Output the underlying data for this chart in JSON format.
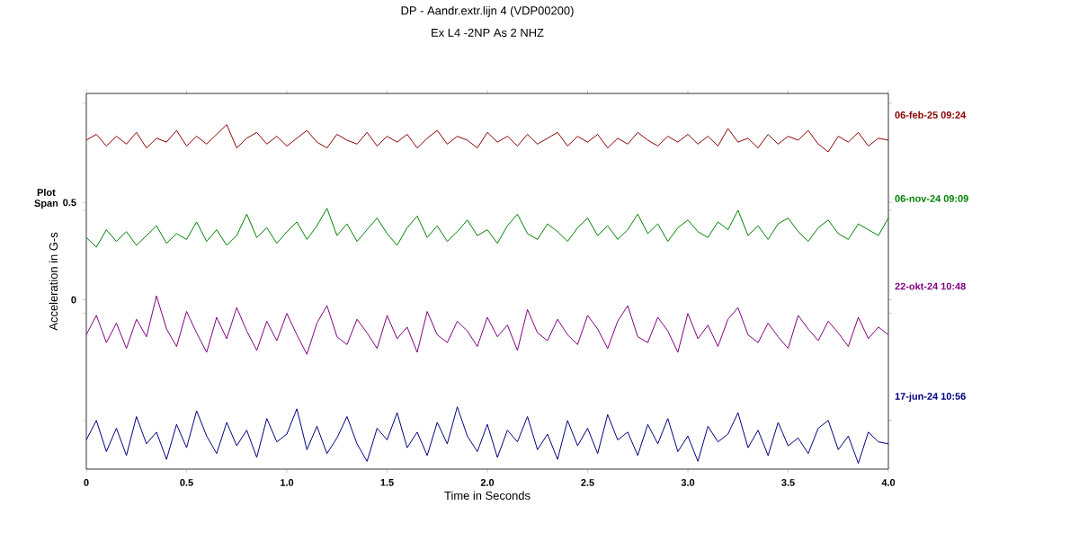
{
  "chart_data": {
    "type": "line",
    "title": "DP - Aandr.extr.lijn 4 (VDP00200)",
    "subtitle": "Ex L4 -2NP As 2 NHZ",
    "xlabel": "Time in Seconds",
    "ylabel": "Acceleration in G-s",
    "annotations": [
      "Plot Span"
    ],
    "xlim": [
      0,
      4
    ],
    "ylim": [
      -0.87,
      1.06
    ],
    "xticks": [
      0,
      0.5,
      {
        "value": 1,
        "label": "1.0"
      },
      1.5,
      {
        "value": 2,
        "label": "2.0"
      },
      2.5,
      {
        "value": 3,
        "label": "3.0"
      },
      3.5,
      {
        "value": 4,
        "label": "4.0"
      }
    ],
    "yticks": [
      {
        "value": -0.62,
        "label": null
      },
      {
        "value": -0.07,
        "label": null
      },
      0,
      {
        "value": 0.46,
        "label": null
      },
      0.5,
      {
        "value": 1.01,
        "label": null
      }
    ],
    "marker": "none",
    "line_style": "solid",
    "x": [
      0,
      0.05,
      0.1,
      0.15,
      0.2,
      0.25,
      0.3,
      0.35,
      0.4,
      0.45,
      0.5,
      0.55,
      0.6,
      0.65,
      0.7,
      0.75,
      0.8,
      0.85,
      0.9,
      0.95,
      1,
      1.05,
      1.1,
      1.15,
      1.2,
      1.25,
      1.3,
      1.35,
      1.4,
      1.45,
      1.5,
      1.55,
      1.6,
      1.65,
      1.7,
      1.75,
      1.8,
      1.85,
      1.9,
      1.95,
      2,
      2.05,
      2.1,
      2.15,
      2.2,
      2.25,
      2.3,
      2.35,
      2.4,
      2.45,
      2.5,
      2.55,
      2.6,
      2.65,
      2.7,
      2.75,
      2.8,
      2.85,
      2.9,
      2.95,
      3,
      3.05,
      3.1,
      3.15,
      3.2,
      3.25,
      3.3,
      3.35,
      3.4,
      3.45,
      3.5,
      3.55,
      3.6,
      3.65,
      3.7,
      3.75,
      3.8,
      3.85,
      3.9,
      3.95,
      4
    ],
    "series": [
      {
        "name": "06-feb-25 09:24",
        "color": "#8b0000",
        "values": [
          0.82,
          0.85,
          0.79,
          0.84,
          0.8,
          0.86,
          0.78,
          0.83,
          0.81,
          0.87,
          0.79,
          0.84,
          0.8,
          0.85,
          0.9,
          0.78,
          0.83,
          0.86,
          0.8,
          0.84,
          0.79,
          0.83,
          0.87,
          0.81,
          0.78,
          0.85,
          0.82,
          0.8,
          0.86,
          0.79,
          0.84,
          0.81,
          0.85,
          0.78,
          0.83,
          0.87,
          0.8,
          0.84,
          0.82,
          0.78,
          0.86,
          0.81,
          0.84,
          0.79,
          0.85,
          0.8,
          0.83,
          0.86,
          0.79,
          0.84,
          0.81,
          0.85,
          0.78,
          0.83,
          0.8,
          0.86,
          0.82,
          0.79,
          0.84,
          0.81,
          0.85,
          0.8,
          0.84,
          0.79,
          0.88,
          0.81,
          0.83,
          0.78,
          0.85,
          0.8,
          0.84,
          0.82,
          0.87,
          0.8,
          0.76,
          0.84,
          0.81,
          0.86,
          0.79,
          0.83,
          0.82
        ]
      },
      {
        "name": "06-nov-24 09:09",
        "color": "#008000",
        "values": [
          0.32,
          0.27,
          0.36,
          0.3,
          0.35,
          0.28,
          0.33,
          0.38,
          0.29,
          0.34,
          0.31,
          0.4,
          0.3,
          0.36,
          0.28,
          0.33,
          0.44,
          0.32,
          0.37,
          0.29,
          0.35,
          0.4,
          0.31,
          0.38,
          0.47,
          0.33,
          0.39,
          0.3,
          0.36,
          0.42,
          0.34,
          0.28,
          0.37,
          0.43,
          0.32,
          0.38,
          0.3,
          0.35,
          0.41,
          0.33,
          0.36,
          0.29,
          0.38,
          0.44,
          0.34,
          0.31,
          0.39,
          0.35,
          0.3,
          0.37,
          0.42,
          0.33,
          0.38,
          0.31,
          0.36,
          0.44,
          0.34,
          0.39,
          0.3,
          0.37,
          0.41,
          0.35,
          0.32,
          0.4,
          0.36,
          0.46,
          0.33,
          0.38,
          0.31,
          0.39,
          0.42,
          0.35,
          0.3,
          0.37,
          0.41,
          0.34,
          0.31,
          0.39,
          0.36,
          0.33,
          0.42
        ]
      },
      {
        "name": "22-okt-24 10:48",
        "color": "#800080",
        "values": [
          -0.18,
          -0.08,
          -0.22,
          -0.12,
          -0.25,
          -0.1,
          -0.19,
          0.02,
          -0.15,
          -0.24,
          -0.06,
          -0.17,
          -0.27,
          -0.09,
          -0.2,
          -0.04,
          -0.16,
          -0.26,
          -0.11,
          -0.21,
          -0.07,
          -0.18,
          -0.28,
          -0.12,
          -0.03,
          -0.19,
          -0.23,
          -0.1,
          -0.17,
          -0.25,
          -0.08,
          -0.2,
          -0.14,
          -0.27,
          -0.06,
          -0.18,
          -0.22,
          -0.11,
          -0.16,
          -0.24,
          -0.09,
          -0.19,
          -0.13,
          -0.26,
          -0.05,
          -0.17,
          -0.21,
          -0.1,
          -0.18,
          -0.23,
          -0.08,
          -0.15,
          -0.25,
          -0.11,
          -0.03,
          -0.19,
          -0.22,
          -0.09,
          -0.16,
          -0.27,
          -0.07,
          -0.2,
          -0.13,
          -0.24,
          -0.1,
          -0.04,
          -0.18,
          -0.22,
          -0.12,
          -0.19,
          -0.25,
          -0.08,
          -0.15,
          -0.21,
          -0.11,
          -0.17,
          -0.24,
          -0.09,
          -0.2,
          -0.14,
          -0.18
        ]
      },
      {
        "name": "17-jun-24 10:56",
        "color": "#000080",
        "values": [
          -0.72,
          -0.62,
          -0.78,
          -0.66,
          -0.8,
          -0.6,
          -0.74,
          -0.68,
          -0.82,
          -0.64,
          -0.76,
          -0.57,
          -0.7,
          -0.79,
          -0.63,
          -0.75,
          -0.67,
          -0.81,
          -0.61,
          -0.73,
          -0.69,
          -0.56,
          -0.77,
          -0.65,
          -0.79,
          -0.71,
          -0.6,
          -0.74,
          -0.83,
          -0.66,
          -0.72,
          -0.58,
          -0.76,
          -0.68,
          -0.8,
          -0.63,
          -0.74,
          -0.55,
          -0.7,
          -0.78,
          -0.64,
          -0.81,
          -0.67,
          -0.73,
          -0.6,
          -0.77,
          -0.69,
          -0.82,
          -0.62,
          -0.75,
          -0.66,
          -0.79,
          -0.59,
          -0.72,
          -0.68,
          -0.8,
          -0.64,
          -0.74,
          -0.61,
          -0.78,
          -0.7,
          -0.83,
          -0.65,
          -0.73,
          -0.69,
          -0.58,
          -0.76,
          -0.67,
          -0.8,
          -0.63,
          -0.75,
          -0.71,
          -0.79,
          -0.66,
          -0.62,
          -0.77,
          -0.7,
          -0.84,
          -0.68,
          -0.73,
          -0.74
        ]
      }
    ]
  }
}
